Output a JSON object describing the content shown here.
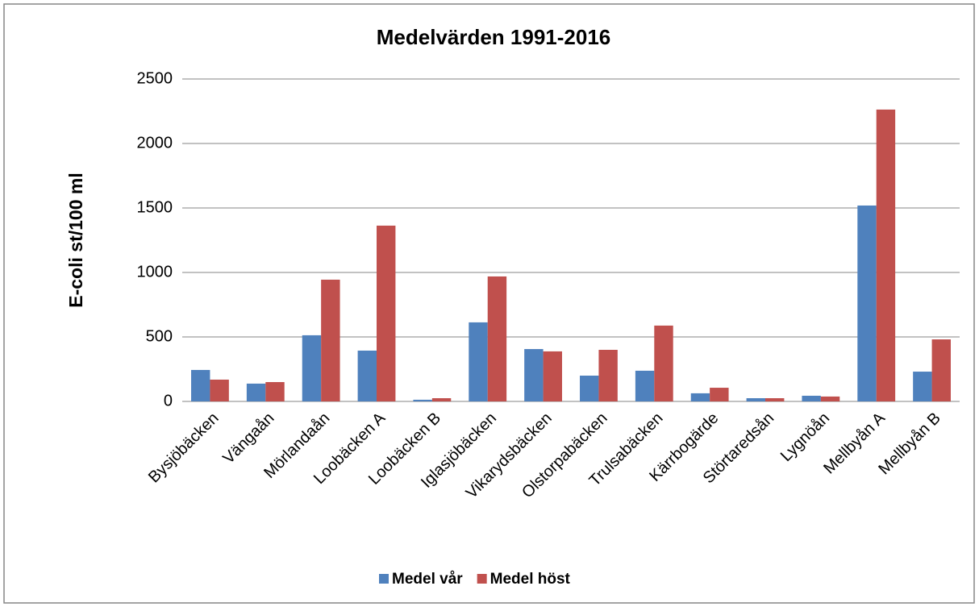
{
  "chart_data": {
    "type": "bar",
    "title": "Medelvärden 1991-2016",
    "y_label": "E-coli st/100 ml",
    "categories": [
      "Bysjöbäcken",
      "Vängaån",
      "Mörlandaån",
      "Loobäcken A",
      "Loobäcken B",
      "Iglasjöbäcken",
      "Vikarydsbäcken",
      "Olstorpabäcken",
      "Trulsabäcken",
      "Kärrbogärde",
      "Störtaredsån",
      "Lygnöån",
      "Mellbyån A",
      "Mellbyån B"
    ],
    "series": [
      {
        "name": "Medel vår",
        "color": "#4f81bd",
        "values": [
          244,
          138,
          513,
          394,
          13,
          613,
          406,
          200,
          238,
          63,
          25,
          44,
          1519,
          231
        ]
      },
      {
        "name": "Medel höst",
        "color": "#c0504d",
        "values": [
          169,
          150,
          944,
          1363,
          25,
          969,
          388,
          400,
          588,
          106,
          25,
          38,
          2263,
          481
        ]
      }
    ],
    "ylim": [
      0,
      2500
    ],
    "yticks": [
      0,
      500,
      1000,
      1500,
      2000,
      2500
    ],
    "grid": true,
    "legend": "bottom"
  }
}
